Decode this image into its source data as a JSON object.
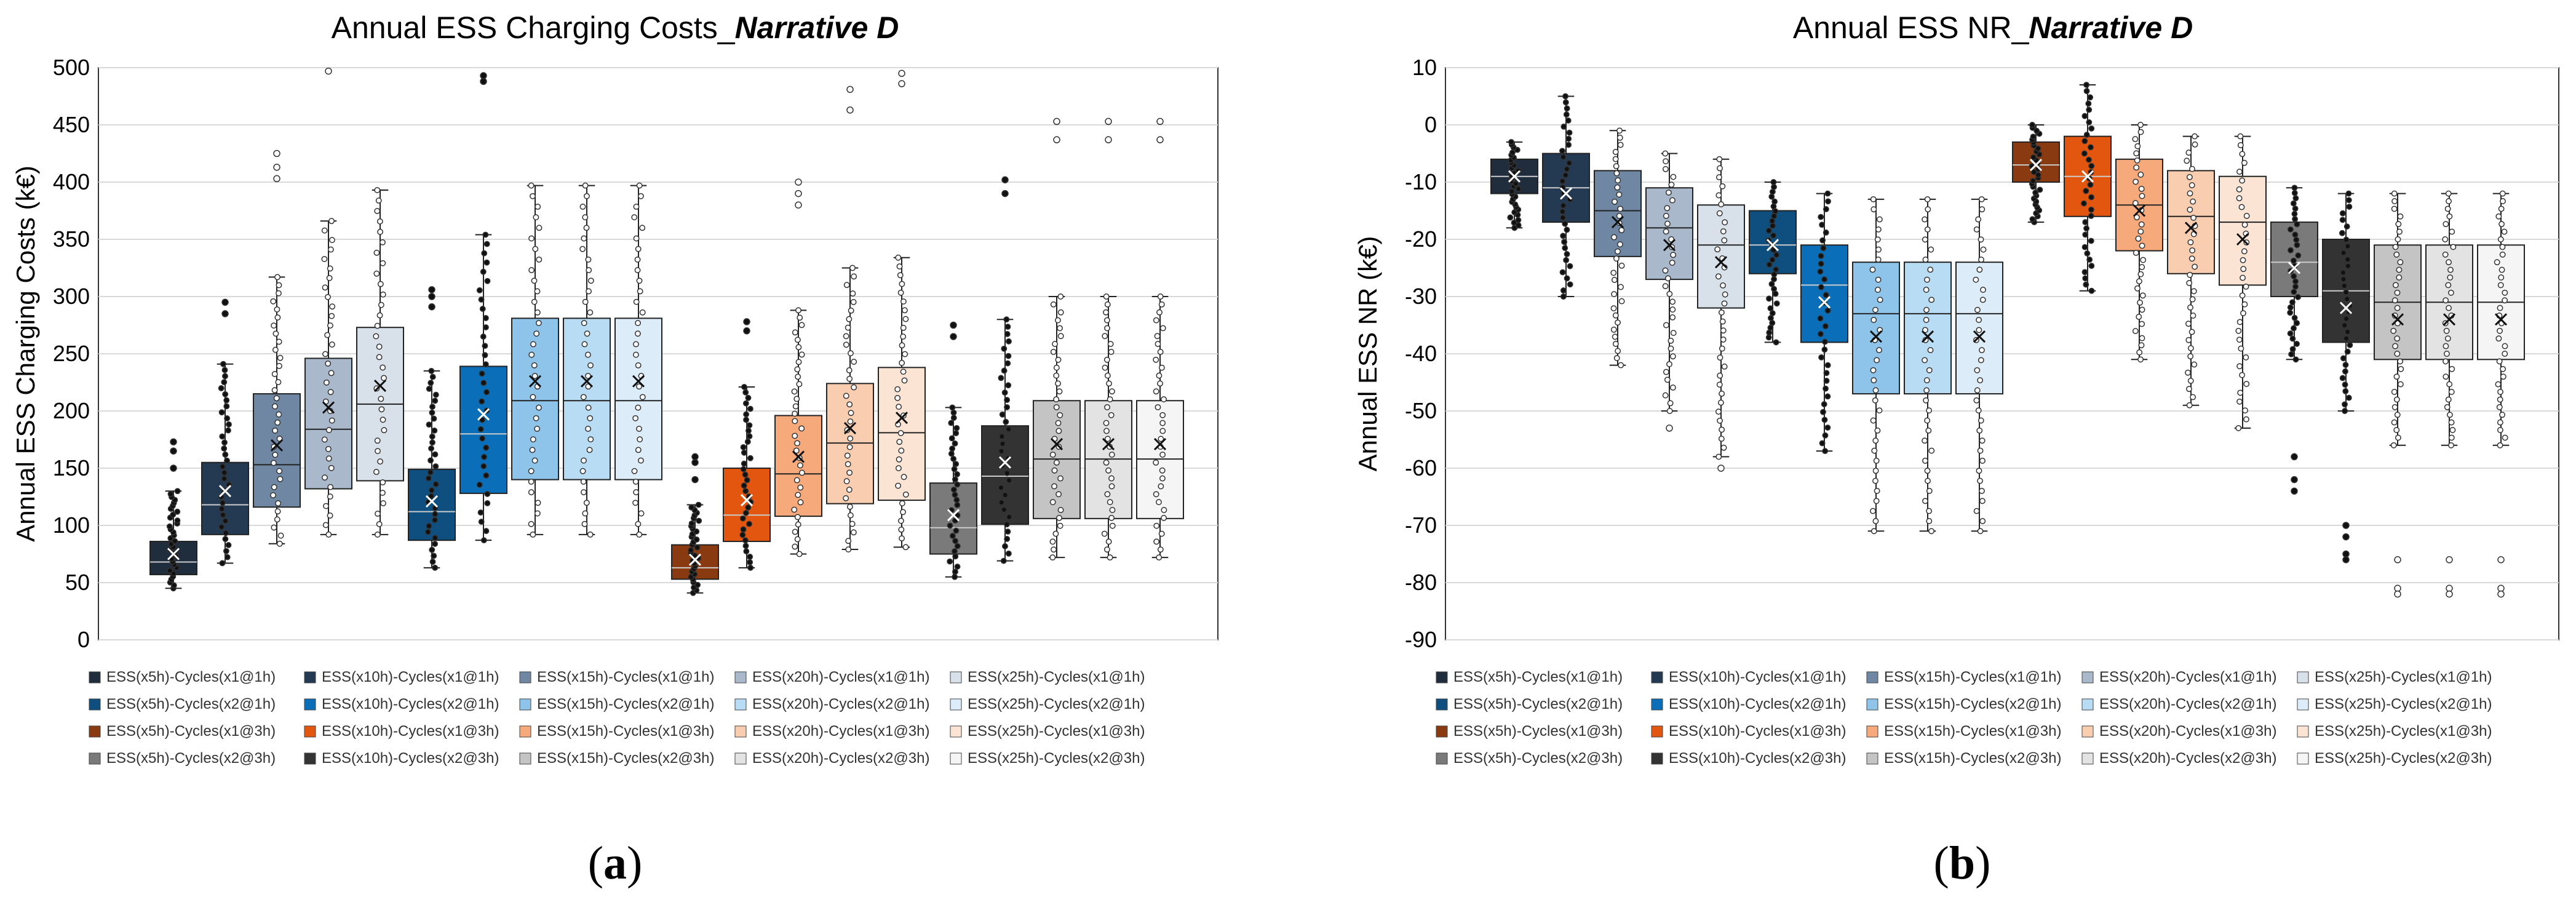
{
  "chart_data": [
    {
      "type": "box",
      "panel_label": "(a)",
      "title": "Annual ESS Charging Costs_",
      "title_emph": "Narrative D",
      "ylabel": "Annual ESS Charging Costs (k€)",
      "ylim": [
        0,
        500
      ],
      "yticks": [
        0,
        50,
        100,
        150,
        200,
        250,
        300,
        350,
        400,
        450,
        500
      ],
      "ytick_labels": [
        "0",
        "50",
        "100",
        "150",
        "200",
        "250",
        "300",
        "350",
        "400",
        "450",
        "500"
      ],
      "boxes": [
        {
          "series": "ESS(x5h)-Cycles(x1@1h)",
          "whisker_low": 45,
          "q1": 57,
          "median": 68,
          "q3": 86,
          "whisker_high": 130,
          "mean": 75,
          "outliers": [
            150,
            165,
            173
          ]
        },
        {
          "series": "ESS(x10h)-Cycles(x1@1h)",
          "whisker_low": 67,
          "q1": 92,
          "median": 118,
          "q3": 155,
          "whisker_high": 241,
          "mean": 130,
          "outliers": [
            285,
            295
          ]
        },
        {
          "series": "ESS(x15h)-Cycles(x1@1h)",
          "whisker_low": 84,
          "q1": 116,
          "median": 153,
          "q3": 215,
          "whisker_high": 317,
          "mean": 170,
          "outliers": [
            403,
            413,
            425
          ]
        },
        {
          "series": "ESS(x20h)-Cycles(x1@1h)",
          "whisker_low": 92,
          "q1": 132,
          "median": 184,
          "q3": 246,
          "whisker_high": 366,
          "mean": 203,
          "outliers": [
            497
          ]
        },
        {
          "series": "ESS(x25h)-Cycles(x1@1h)",
          "whisker_low": 92,
          "q1": 139,
          "median": 206,
          "q3": 273,
          "whisker_high": 393,
          "mean": 222,
          "outliers": []
        },
        {
          "series": "ESS(x5h)-Cycles(x2@1h)",
          "whisker_low": 63,
          "q1": 87,
          "median": 112,
          "q3": 149,
          "whisker_high": 235,
          "mean": 121,
          "outliers": [
            291,
            300,
            306
          ]
        },
        {
          "series": "ESS(x10h)-Cycles(x2@1h)",
          "whisker_low": 87,
          "q1": 128,
          "median": 180,
          "q3": 239,
          "whisker_high": 354,
          "mean": 197,
          "outliers": [
            488,
            493
          ]
        },
        {
          "series": "ESS(x15h)-Cycles(x2@1h)",
          "whisker_low": 92,
          "q1": 140,
          "median": 209,
          "q3": 281,
          "whisker_high": 397,
          "mean": 226,
          "outliers": []
        },
        {
          "series": "ESS(x20h)-Cycles(x2@1h)",
          "whisker_low": 92,
          "q1": 140,
          "median": 209,
          "q3": 281,
          "whisker_high": 397,
          "mean": 226,
          "outliers": []
        },
        {
          "series": "ESS(x25h)-Cycles(x2@1h)",
          "whisker_low": 92,
          "q1": 140,
          "median": 209,
          "q3": 281,
          "whisker_high": 397,
          "mean": 226,
          "outliers": []
        },
        {
          "series": "ESS(x5h)-Cycles(x1@3h)",
          "whisker_low": 41,
          "q1": 53,
          "median": 63,
          "q3": 83,
          "whisker_high": 118,
          "mean": 70,
          "outliers": [
            140,
            155,
            160
          ]
        },
        {
          "series": "ESS(x10h)-Cycles(x1@3h)",
          "whisker_low": 63,
          "q1": 86,
          "median": 109,
          "q3": 150,
          "whisker_high": 221,
          "mean": 122,
          "outliers": [
            270,
            278
          ]
        },
        {
          "series": "ESS(x15h)-Cycles(x1@3h)",
          "whisker_low": 75,
          "q1": 108,
          "median": 145,
          "q3": 196,
          "whisker_high": 288,
          "mean": 160,
          "outliers": [
            380,
            390,
            400
          ]
        },
        {
          "series": "ESS(x20h)-Cycles(x1@3h)",
          "whisker_low": 79,
          "q1": 119,
          "median": 172,
          "q3": 224,
          "whisker_high": 325,
          "mean": 185,
          "outliers": [
            463,
            481
          ]
        },
        {
          "series": "ESS(x25h)-Cycles(x1@3h)",
          "whisker_low": 81,
          "q1": 122,
          "median": 181,
          "q3": 238,
          "whisker_high": 334,
          "mean": 194,
          "outliers": [
            486,
            495
          ]
        },
        {
          "series": "ESS(x5h)-Cycles(x2@3h)",
          "whisker_low": 55,
          "q1": 75,
          "median": 98,
          "q3": 137,
          "whisker_high": 203,
          "mean": 109,
          "outliers": [
            265,
            275
          ]
        },
        {
          "series": "ESS(x10h)-Cycles(x2@3h)",
          "whisker_low": 69,
          "q1": 101,
          "median": 143,
          "q3": 187,
          "whisker_high": 280,
          "mean": 155,
          "outliers": [
            390,
            402
          ]
        },
        {
          "series": "ESS(x15h)-Cycles(x2@3h)",
          "whisker_low": 72,
          "q1": 106,
          "median": 158,
          "q3": 209,
          "whisker_high": 300,
          "mean": 171,
          "outliers": [
            437,
            453
          ]
        },
        {
          "series": "ESS(x20h)-Cycles(x2@3h)",
          "whisker_low": 72,
          "q1": 106,
          "median": 158,
          "q3": 209,
          "whisker_high": 300,
          "mean": 171,
          "outliers": [
            437,
            453
          ]
        },
        {
          "series": "ESS(x25h)-Cycles(x2@3h)",
          "whisker_low": 72,
          "q1": 106,
          "median": 158,
          "q3": 209,
          "whisker_high": 300,
          "mean": 171,
          "outliers": [
            437,
            453
          ]
        }
      ]
    },
    {
      "type": "box",
      "panel_label": "(b)",
      "title": "Annual ESS NR_",
      "title_emph": "Narrative D",
      "ylabel": "Annual ESS NR (k€)",
      "ylim": [
        -90,
        10
      ],
      "yticks": [
        -90,
        -80,
        -70,
        -60,
        -50,
        -40,
        -30,
        -20,
        -10,
        0,
        10
      ],
      "ytick_labels": [
        "-90",
        "-80",
        "-70",
        "-60",
        "-50",
        "-40",
        "-30",
        "-20",
        "-10",
        "0",
        "10"
      ],
      "boxes": [
        {
          "series": "ESS(x5h)-Cycles(x1@1h)",
          "whisker_low": -18,
          "q1": -12,
          "median": -9,
          "q3": -6,
          "whisker_high": -3,
          "mean": -9,
          "outliers": []
        },
        {
          "series": "ESS(x10h)-Cycles(x1@1h)",
          "whisker_low": -30,
          "q1": -17,
          "median": -11,
          "q3": -5,
          "whisker_high": 5,
          "mean": -12,
          "outliers": []
        },
        {
          "series": "ESS(x15h)-Cycles(x1@1h)",
          "whisker_low": -42,
          "q1": -23,
          "median": -15,
          "q3": -8,
          "whisker_high": -1,
          "mean": -17,
          "outliers": []
        },
        {
          "series": "ESS(x20h)-Cycles(x1@1h)",
          "whisker_low": -50,
          "q1": -27,
          "median": -18,
          "q3": -11,
          "whisker_high": -5,
          "mean": -21,
          "outliers": [
            -53
          ]
        },
        {
          "series": "ESS(x25h)-Cycles(x1@1h)",
          "whisker_low": -58,
          "q1": -32,
          "median": -21,
          "q3": -14,
          "whisker_high": -6,
          "mean": -24,
          "outliers": [
            -60
          ]
        },
        {
          "series": "ESS(x5h)-Cycles(x2@1h)",
          "whisker_low": -38,
          "q1": -26,
          "median": -21,
          "q3": -15,
          "whisker_high": -10,
          "mean": -21,
          "outliers": []
        },
        {
          "series": "ESS(x10h)-Cycles(x2@1h)",
          "whisker_low": -57,
          "q1": -38,
          "median": -28,
          "q3": -21,
          "whisker_high": -12,
          "mean": -31,
          "outliers": []
        },
        {
          "series": "ESS(x15h)-Cycles(x2@1h)",
          "whisker_low": -71,
          "q1": -47,
          "median": -33,
          "q3": -24,
          "whisker_high": -13,
          "mean": -37,
          "outliers": []
        },
        {
          "series": "ESS(x20h)-Cycles(x2@1h)",
          "whisker_low": -71,
          "q1": -47,
          "median": -33,
          "q3": -24,
          "whisker_high": -13,
          "mean": -37,
          "outliers": []
        },
        {
          "series": "ESS(x25h)-Cycles(x2@1h)",
          "whisker_low": -71,
          "q1": -47,
          "median": -33,
          "q3": -24,
          "whisker_high": -13,
          "mean": -37,
          "outliers": []
        },
        {
          "series": "ESS(x5h)-Cycles(x1@3h)",
          "whisker_low": -17,
          "q1": -10,
          "median": -7,
          "q3": -3,
          "whisker_high": 0,
          "mean": -7,
          "outliers": []
        },
        {
          "series": "ESS(x10h)-Cycles(x1@3h)",
          "whisker_low": -29,
          "q1": -16,
          "median": -9,
          "q3": -2,
          "whisker_high": 7,
          "mean": -9,
          "outliers": []
        },
        {
          "series": "ESS(x15h)-Cycles(x1@3h)",
          "whisker_low": -41,
          "q1": -22,
          "median": -14,
          "q3": -6,
          "whisker_high": 0,
          "mean": -15,
          "outliers": []
        },
        {
          "series": "ESS(x20h)-Cycles(x1@3h)",
          "whisker_low": -49,
          "q1": -26,
          "median": -16,
          "q3": -8,
          "whisker_high": -2,
          "mean": -18,
          "outliers": []
        },
        {
          "series": "ESS(x25h)-Cycles(x1@3h)",
          "whisker_low": -53,
          "q1": -28,
          "median": -17,
          "q3": -9,
          "whisker_high": -2,
          "mean": -20,
          "outliers": []
        },
        {
          "series": "ESS(x5h)-Cycles(x2@3h)",
          "whisker_low": -41,
          "q1": -30,
          "median": -24,
          "q3": -17,
          "whisker_high": -11,
          "mean": -25,
          "outliers": [
            -58,
            -62,
            -64
          ]
        },
        {
          "series": "ESS(x10h)-Cycles(x2@3h)",
          "whisker_low": -50,
          "q1": -38,
          "median": -29,
          "q3": -20,
          "whisker_high": -12,
          "mean": -32,
          "outliers": [
            -70,
            -72,
            -75,
            -76
          ]
        },
        {
          "series": "ESS(x15h)-Cycles(x2@3h)",
          "whisker_low": -56,
          "q1": -41,
          "median": -31,
          "q3": -21,
          "whisker_high": -12,
          "mean": -34,
          "outliers": [
            -76,
            -81,
            -82
          ]
        },
        {
          "series": "ESS(x20h)-Cycles(x2@3h)",
          "whisker_low": -56,
          "q1": -41,
          "median": -31,
          "q3": -21,
          "whisker_high": -12,
          "mean": -34,
          "outliers": [
            -76,
            -81,
            -82
          ]
        },
        {
          "series": "ESS(x25h)-Cycles(x2@3h)",
          "whisker_low": -56,
          "q1": -41,
          "median": -31,
          "q3": -21,
          "whisker_high": -12,
          "mean": -34,
          "outliers": [
            -76,
            -81,
            -82
          ]
        }
      ]
    }
  ],
  "legend": {
    "rows": [
      [
        {
          "label": "ESS(x5h)-Cycles(x1@1h)",
          "color": "#1f2d3d"
        },
        {
          "label": "ESS(x10h)-Cycles(x1@1h)",
          "color": "#243a53"
        },
        {
          "label": "ESS(x15h)-Cycles(x1@1h)",
          "color": "#6f87a2"
        },
        {
          "label": "ESS(x20h)-Cycles(x1@1h)",
          "color": "#a9b8ca"
        },
        {
          "label": "ESS(x25h)-Cycles(x1@1h)",
          "color": "#d8e0ea"
        }
      ],
      [
        {
          "label": "ESS(x5h)-Cycles(x2@1h)",
          "color": "#0e4f7f"
        },
        {
          "label": "ESS(x10h)-Cycles(x2@1h)",
          "color": "#0a6fb8"
        },
        {
          "label": "ESS(x15h)-Cycles(x2@1h)",
          "color": "#8ec4ea"
        },
        {
          "label": "ESS(x20h)-Cycles(x2@1h)",
          "color": "#b8dcf3"
        },
        {
          "label": "ESS(x25h)-Cycles(x2@1h)",
          "color": "#dcedf9"
        }
      ],
      [
        {
          "label": "ESS(x5h)-Cycles(x1@3h)",
          "color": "#8a3a10"
        },
        {
          "label": "ESS(x10h)-Cycles(x1@3h)",
          "color": "#e2560f"
        },
        {
          "label": "ESS(x15h)-Cycles(x1@3h)",
          "color": "#f6aa7c"
        },
        {
          "label": "ESS(x20h)-Cycles(x1@3h)",
          "color": "#f9cdb0"
        },
        {
          "label": "ESS(x25h)-Cycles(x1@3h)",
          "color": "#fbe4d4"
        }
      ],
      [
        {
          "label": "ESS(x5h)-Cycles(x2@3h)",
          "color": "#7a7a7a"
        },
        {
          "label": "ESS(x10h)-Cycles(x2@3h)",
          "color": "#333333"
        },
        {
          "label": "ESS(x15h)-Cycles(x2@3h)",
          "color": "#c4c4c4"
        },
        {
          "label": "ESS(x20h)-Cycles(x2@3h)",
          "color": "#e3e3e3"
        },
        {
          "label": "ESS(x25h)-Cycles(x2@3h)",
          "color": "#f5f5f5"
        }
      ]
    ]
  },
  "box_order_colors": [
    "#1f2d3d",
    "#243a53",
    "#6f87a2",
    "#a9b8ca",
    "#d8e0ea",
    "#0e4f7f",
    "#0a6fb8",
    "#8ec4ea",
    "#b8dcf3",
    "#dcedf9",
    "#8a3a10",
    "#e2560f",
    "#f6aa7c",
    "#f9cdb0",
    "#fbe4d4",
    "#7a7a7a",
    "#333333",
    "#c4c4c4",
    "#e3e3e3",
    "#f5f5f5"
  ]
}
